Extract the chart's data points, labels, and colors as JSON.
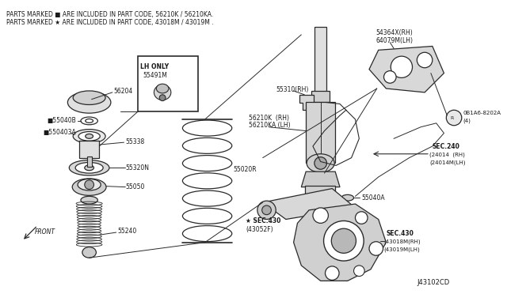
{
  "bg_color": "#ffffff",
  "line_color": "#2a2a2a",
  "text_color": "#1a1a1a",
  "fig_width": 6.4,
  "fig_height": 3.72,
  "dpi": 100,
  "header_line1": "PARTS MARKED ■ ARE INCLUDED IN PART CODE, 56210K / 56210KA.",
  "header_line2": "PARTS MARKED ★ ARE INCLUDED IN PART CODE, 43018M / 43019M .",
  "footer_code": "J43102CD"
}
